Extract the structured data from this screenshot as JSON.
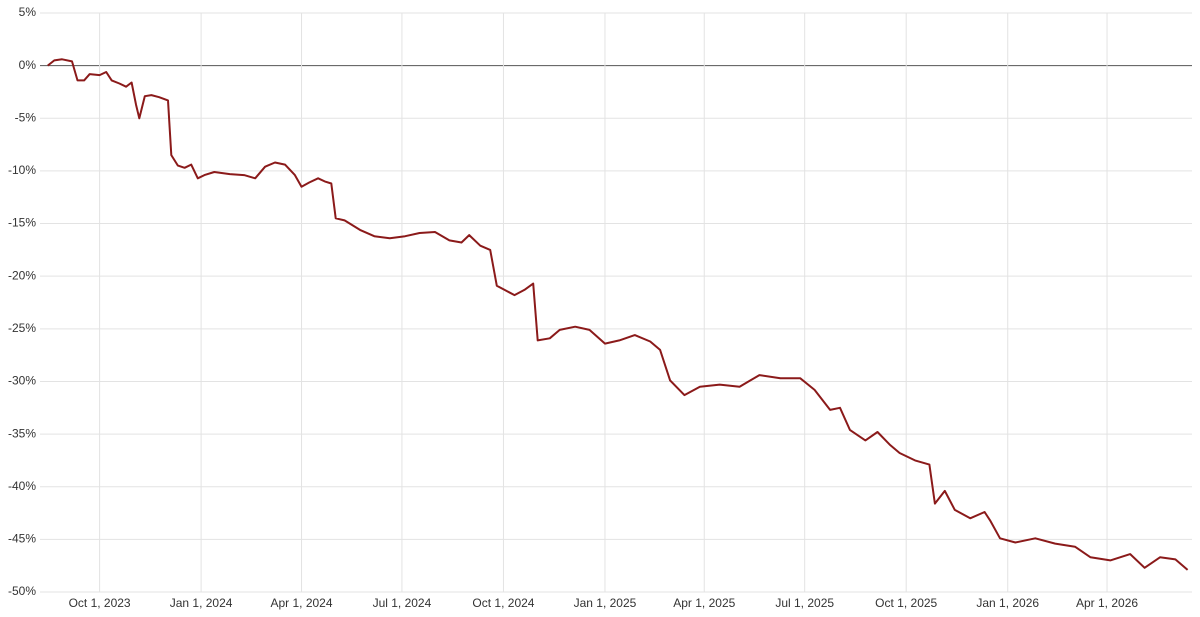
{
  "chart_data": {
    "type": "line",
    "x": [
      "2023-08-15",
      "2023-08-21",
      "2023-08-28",
      "2023-09-06",
      "2023-09-11",
      "2023-09-17",
      "2023-09-22",
      "2023-10-01",
      "2023-10-07",
      "2023-10-12",
      "2023-10-19",
      "2023-10-25",
      "2023-10-30",
      "2023-11-03",
      "2023-11-06",
      "2023-11-11",
      "2023-11-17",
      "2023-11-24",
      "2023-12-02",
      "2023-12-05",
      "2023-12-11",
      "2023-12-17",
      "2023-12-23",
      "2023-12-29",
      "2024-01-04",
      "2024-01-13",
      "2024-01-27",
      "2024-02-09",
      "2024-02-19",
      "2024-02-28",
      "2024-03-08",
      "2024-03-17",
      "2024-03-26",
      "2024-04-01",
      "2024-04-08",
      "2024-04-16",
      "2024-04-22",
      "2024-04-28",
      "2024-05-02",
      "2024-05-10",
      "2024-05-24",
      "2024-06-06",
      "2024-06-20",
      "2024-07-04",
      "2024-07-17",
      "2024-07-31",
      "2024-08-13",
      "2024-08-24",
      "2024-08-31",
      "2024-09-10",
      "2024-09-19",
      "2024-09-25",
      "2024-10-02",
      "2024-10-11",
      "2024-10-20",
      "2024-10-28",
      "2024-11-01",
      "2024-11-12",
      "2024-11-21",
      "2024-12-05",
      "2024-12-18",
      "2025-01-01",
      "2025-01-14",
      "2025-01-28",
      "2025-02-11",
      "2025-02-20",
      "2025-03-01",
      "2025-03-14",
      "2025-03-28",
      "2025-04-15",
      "2025-05-03",
      "2025-05-21",
      "2025-06-09",
      "2025-06-27",
      "2025-07-10",
      "2025-07-24",
      "2025-08-02",
      "2025-08-11",
      "2025-08-25",
      "2025-09-05",
      "2025-09-16",
      "2025-09-25",
      "2025-10-09",
      "2025-10-22",
      "2025-10-27",
      "2025-11-05",
      "2025-11-14",
      "2025-11-28",
      "2025-12-11",
      "2025-12-16",
      "2025-12-25",
      "2026-01-08",
      "2026-01-26",
      "2026-02-13",
      "2026-03-03",
      "2026-03-17",
      "2026-04-04",
      "2026-04-22",
      "2026-05-05",
      "2026-05-19",
      "2026-06-02",
      "2026-06-13"
    ],
    "series": [
      {
        "color": "#8b1a1a",
        "values": [
          0,
          0.5,
          0.6,
          0.4,
          -1.4,
          -1.4,
          -0.8,
          -0.9,
          -0.6,
          -1.4,
          -1.7,
          -2.0,
          -1.6,
          -3.7,
          -5.0,
          -2.9,
          -2.8,
          -3.0,
          -3.3,
          -8.5,
          -9.5,
          -9.7,
          -9.4,
          -10.7,
          -10.4,
          -10.1,
          -10.3,
          -10.4,
          -10.7,
          -9.6,
          -9.2,
          -9.4,
          -10.4,
          -11.5,
          -11.1,
          -10.7,
          -11.0,
          -11.2,
          -14.5,
          -14.7,
          -15.6,
          -16.2,
          -16.4,
          -16.2,
          -15.9,
          -15.8,
          -16.6,
          -16.8,
          -16.1,
          -17.1,
          -17.5,
          -20.9,
          -21.3,
          -21.8,
          -21.3,
          -20.7,
          -26.1,
          -25.9,
          -25.1,
          -24.8,
          -25.1,
          -26.4,
          -26.1,
          -25.6,
          -26.2,
          -27.0,
          -29.9,
          -31.3,
          -30.5,
          -30.3,
          -30.5,
          -29.4,
          -29.7,
          -29.7,
          -30.8,
          -32.7,
          -32.5,
          -34.6,
          -35.6,
          -34.8,
          -36.0,
          -36.8,
          -37.5,
          -37.9,
          -41.6,
          -40.4,
          -42.2,
          -43.0,
          -42.4,
          -43.2,
          -44.9,
          -45.3,
          -44.9,
          -45.4,
          -45.7,
          -46.7,
          -47.0,
          -46.4,
          -47.7,
          -46.7,
          -46.9,
          -47.9
        ]
      }
    ],
    "xlim": [
      "2023-08-08",
      "2026-06-17"
    ],
    "xticks": [
      {
        "value": "2023-10-01",
        "label": "Oct 1, 2023"
      },
      {
        "value": "2024-01-01",
        "label": "Jan 1, 2024"
      },
      {
        "value": "2024-04-01",
        "label": "Apr 1, 2024"
      },
      {
        "value": "2024-07-01",
        "label": "Jul 1, 2024"
      },
      {
        "value": "2024-10-01",
        "label": "Oct 1, 2024"
      },
      {
        "value": "2025-01-01",
        "label": "Jan 1, 2025"
      },
      {
        "value": "2025-04-01",
        "label": "Apr 1, 2025"
      },
      {
        "value": "2025-07-01",
        "label": "Jul 1, 2025"
      },
      {
        "value": "2025-10-01",
        "label": "Oct 1, 2025"
      },
      {
        "value": "2026-01-01",
        "label": "Jan 1, 2026"
      },
      {
        "value": "2026-04-01",
        "label": "Apr 1, 2026"
      }
    ],
    "ylim": [
      -50,
      5
    ],
    "yticks": [
      {
        "value": 5,
        "label": "5%"
      },
      {
        "value": 0,
        "label": "0%"
      },
      {
        "value": -5,
        "label": "-5%"
      },
      {
        "value": -10,
        "label": "-10%"
      },
      {
        "value": -15,
        "label": "-15%"
      },
      {
        "value": -20,
        "label": "-20%"
      },
      {
        "value": -25,
        "label": "-25%"
      },
      {
        "value": -30,
        "label": "-30%"
      },
      {
        "value": -35,
        "label": "-35%"
      },
      {
        "value": -40,
        "label": "-40%"
      },
      {
        "value": -45,
        "label": "-45%"
      },
      {
        "value": -50,
        "label": "-50%"
      }
    ],
    "grid": true
  }
}
